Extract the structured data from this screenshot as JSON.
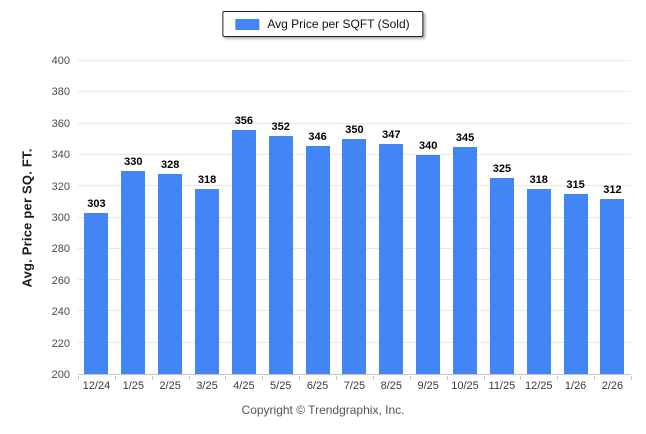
{
  "legend": {
    "label": "Avg Price per SQFT (Sold)",
    "swatch_color": "#4285f4"
  },
  "footer": {
    "copyright": "Copyright © Trendgraphix, Inc."
  },
  "chart_data": {
    "type": "bar",
    "title": "",
    "legend": "Avg Price per SQFT (Sold)",
    "legend_position": "top-center",
    "categories": [
      "12/24",
      "1/25",
      "2/25",
      "3/25",
      "4/25",
      "5/25",
      "6/25",
      "7/25",
      "8/25",
      "9/25",
      "10/25",
      "11/25",
      "12/25",
      "1/26",
      "2/26"
    ],
    "values": [
      303,
      330,
      328,
      318,
      356,
      352,
      346,
      350,
      347,
      340,
      345,
      325,
      318,
      315,
      312
    ],
    "xlabel": "",
    "ylabel": "Avg. Price per SQ. FT.",
    "ylim": [
      200,
      400
    ],
    "ytick_step": 20,
    "grid": true,
    "value_labels": true,
    "bar_color": "#4285f4",
    "gridline_color": "#e9e9e9",
    "axis_line_color": "#c8c8c8"
  }
}
